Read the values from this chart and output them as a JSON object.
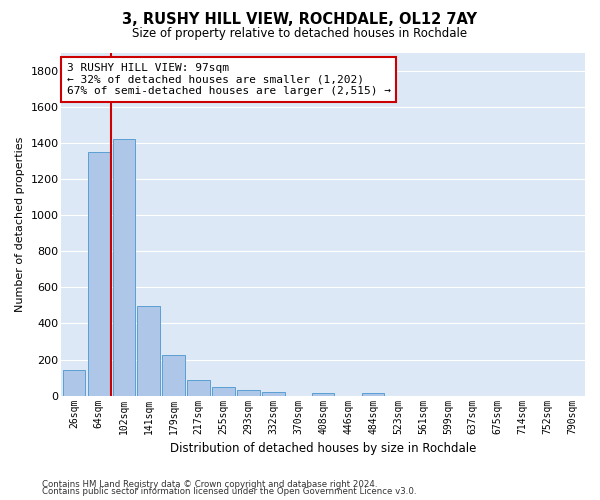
{
  "title": "3, RUSHY HILL VIEW, ROCHDALE, OL12 7AY",
  "subtitle": "Size of property relative to detached houses in Rochdale",
  "xlabel": "Distribution of detached houses by size in Rochdale",
  "ylabel": "Number of detached properties",
  "bar_labels": [
    "26sqm",
    "64sqm",
    "102sqm",
    "141sqm",
    "179sqm",
    "217sqm",
    "255sqm",
    "293sqm",
    "332sqm",
    "370sqm",
    "408sqm",
    "446sqm",
    "484sqm",
    "523sqm",
    "561sqm",
    "599sqm",
    "637sqm",
    "675sqm",
    "714sqm",
    "752sqm",
    "790sqm"
  ],
  "bar_values": [
    140,
    1350,
    1420,
    495,
    225,
    85,
    50,
    30,
    20,
    0,
    15,
    0,
    15,
    0,
    0,
    0,
    0,
    0,
    0,
    0,
    0
  ],
  "bar_color": "#aec6e8",
  "bar_edgecolor": "#5a9fd4",
  "red_line_x": 1.5,
  "red_line_color": "#cc0000",
  "annotation_text": "3 RUSHY HILL VIEW: 97sqm\n← 32% of detached houses are smaller (1,202)\n67% of semi-detached houses are larger (2,515) →",
  "annotation_box_edgecolor": "#cc0000",
  "annotation_box_facecolor": "#ffffff",
  "ylim": [
    0,
    1900
  ],
  "yticks": [
    0,
    200,
    400,
    600,
    800,
    1000,
    1200,
    1400,
    1600,
    1800
  ],
  "bg_color": "#dce8f5",
  "grid_color": "#ffffff",
  "footer_line1": "Contains HM Land Registry data © Crown copyright and database right 2024.",
  "footer_line2": "Contains public sector information licensed under the Open Government Licence v3.0."
}
